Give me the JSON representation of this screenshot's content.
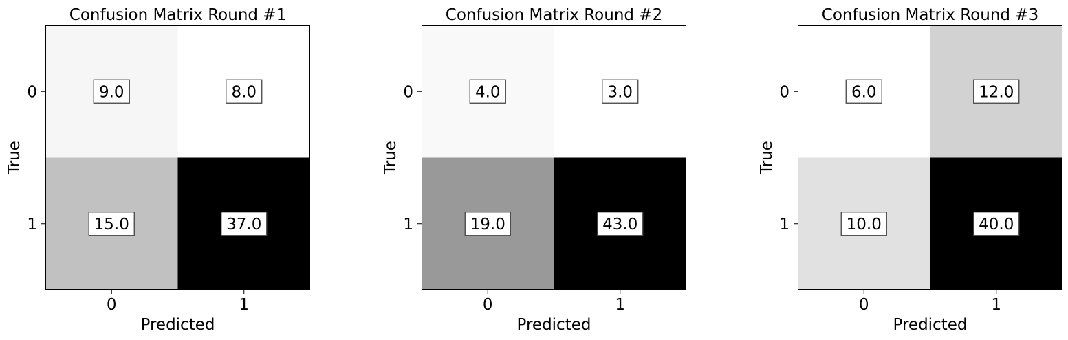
{
  "chart_data": [
    {
      "type": "heatmap",
      "title": "Confusion Matrix Round #1",
      "xlabel": "Predicted",
      "ylabel": "True",
      "x_categories": [
        "0",
        "1"
      ],
      "y_categories": [
        "0",
        "1"
      ],
      "values": [
        [
          9.0,
          8.0
        ],
        [
          15.0,
          37.0
        ]
      ],
      "value_labels": [
        [
          "9.0",
          "8.0"
        ],
        [
          "15.0",
          "37.0"
        ]
      ],
      "colormap": "grayscale-reversed",
      "grid": false
    },
    {
      "type": "heatmap",
      "title": "Confusion Matrix Round #2",
      "xlabel": "Predicted",
      "ylabel": "True",
      "x_categories": [
        "0",
        "1"
      ],
      "y_categories": [
        "0",
        "1"
      ],
      "values": [
        [
          4.0,
          3.0
        ],
        [
          19.0,
          43.0
        ]
      ],
      "value_labels": [
        [
          "4.0",
          "3.0"
        ],
        [
          "19.0",
          "43.0"
        ]
      ],
      "colormap": "grayscale-reversed",
      "grid": false
    },
    {
      "type": "heatmap",
      "title": "Confusion Matrix Round #3",
      "xlabel": "Predicted",
      "ylabel": "True",
      "x_categories": [
        "0",
        "1"
      ],
      "y_categories": [
        "0",
        "1"
      ],
      "values": [
        [
          6.0,
          12.0
        ],
        [
          10.0,
          40.0
        ]
      ],
      "value_labels": [
        [
          "6.0",
          "12.0"
        ],
        [
          "10.0",
          "40.0"
        ]
      ],
      "colormap": "grayscale-reversed",
      "grid": false
    }
  ]
}
